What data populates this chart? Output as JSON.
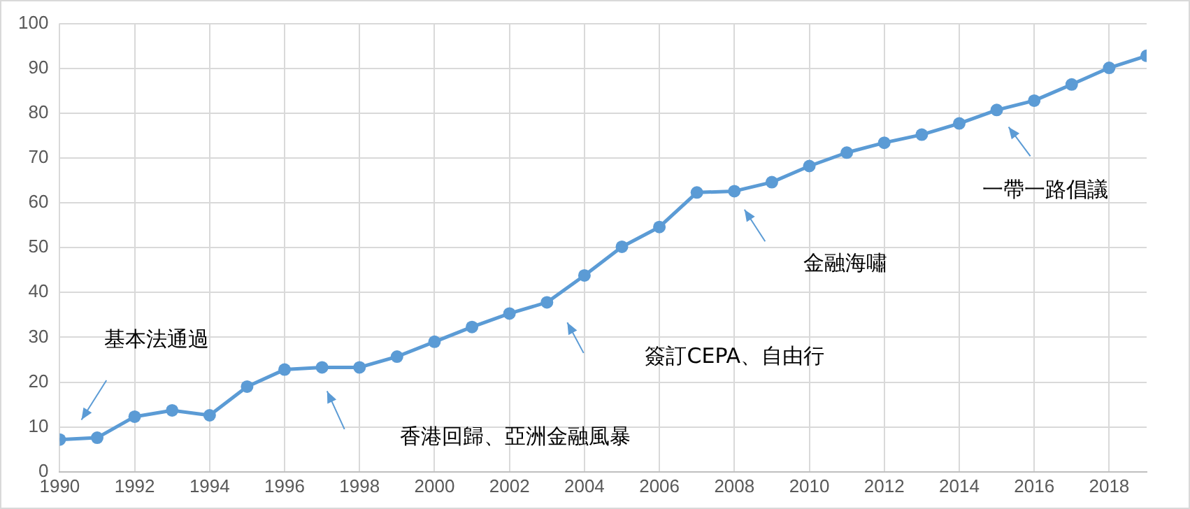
{
  "chart_data": {
    "type": "line",
    "x": [
      1990,
      1991,
      1992,
      1993,
      1994,
      1995,
      1996,
      1997,
      1998,
      1999,
      2000,
      2001,
      2002,
      2003,
      2004,
      2005,
      2006,
      2007,
      2008,
      2009,
      2010,
      2011,
      2012,
      2013,
      2014,
      2015,
      2016,
      2017,
      2018,
      2019
    ],
    "series": [
      {
        "color": "#5b9bd5",
        "values": [
          7.2,
          7.6,
          12.3,
          13.7,
          12.6,
          19,
          22.8,
          23.3,
          23.3,
          25.7,
          29,
          32.3,
          35.3,
          37.8,
          43.8,
          50.2,
          54.6,
          62.3,
          62.6,
          64.6,
          68.2,
          71.2,
          73.4,
          75.2,
          77.7,
          80.7,
          82.8,
          86.4,
          90.1,
          92.8
        ]
      }
    ],
    "xlim": [
      1990,
      2019
    ],
    "xticks": [
      1990,
      1992,
      1994,
      1996,
      1998,
      2000,
      2002,
      2004,
      2006,
      2008,
      2010,
      2012,
      2014,
      2016,
      2018
    ],
    "ylim": [
      0,
      100
    ],
    "yticks": [
      0,
      10,
      20,
      30,
      40,
      50,
      60,
      70,
      80,
      90,
      100
    ],
    "grid": true,
    "legend": false,
    "marker": "circle",
    "line_style": "solid",
    "annotations": [
      "基本法通過",
      "香港回歸、亞洲金融風暴",
      "簽訂CEPA、自由行",
      "金融海嘯",
      "一帶一路倡議"
    ]
  }
}
